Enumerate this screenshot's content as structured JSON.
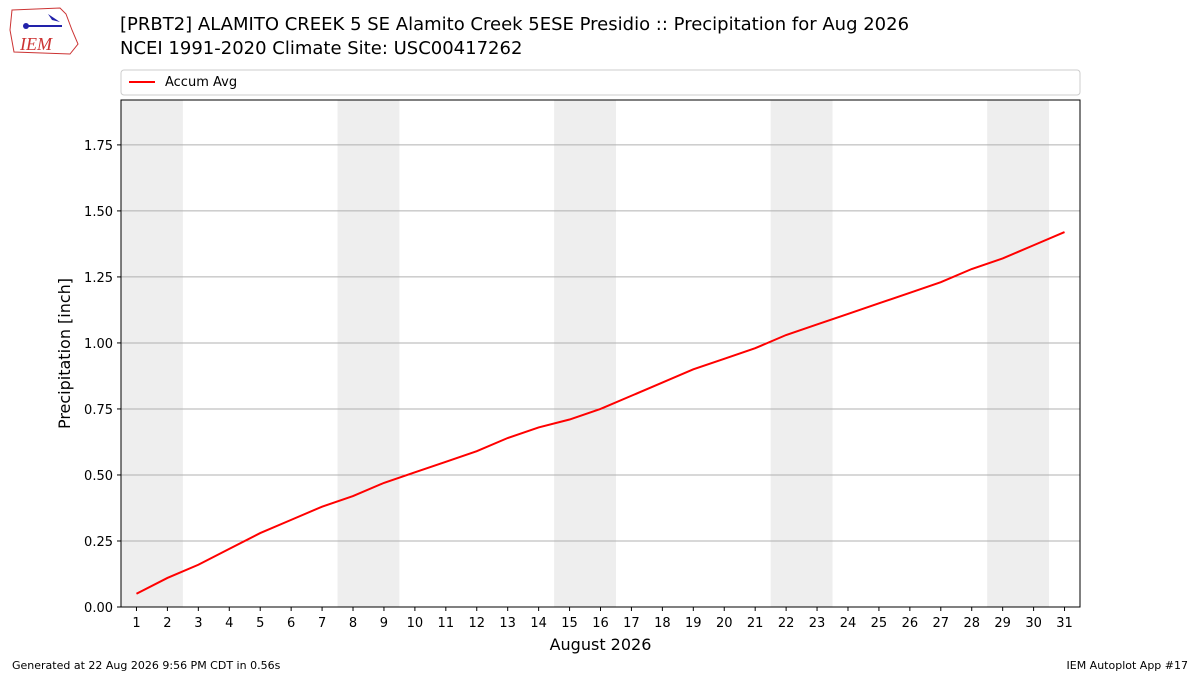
{
  "logo_text": "IEM",
  "footer_left": "Generated at 22 Aug 2026 9:56 PM CDT in 0.56s",
  "footer_right": "IEM Autoplot App #17",
  "chart_data": {
    "type": "line",
    "title": "[PRBT2] ALAMITO CREEK 5 SE Alamito Creek 5ESE Presidio :: Precipitation for Aug 2026",
    "subtitle": "NCEI 1991-2020 Climate Site: USC00417262",
    "xlabel": "August 2026",
    "ylabel": "Precipitation [inch]",
    "x": [
      1,
      2,
      3,
      4,
      5,
      6,
      7,
      8,
      9,
      10,
      11,
      12,
      13,
      14,
      15,
      16,
      17,
      18,
      19,
      20,
      21,
      22,
      23,
      24,
      25,
      26,
      27,
      28,
      29,
      30,
      31
    ],
    "series": [
      {
        "name": "Accum Avg",
        "color": "#ff0000",
        "values": [
          0.05,
          0.11,
          0.16,
          0.22,
          0.28,
          0.33,
          0.38,
          0.42,
          0.47,
          0.51,
          0.55,
          0.59,
          0.64,
          0.68,
          0.71,
          0.75,
          0.8,
          0.85,
          0.9,
          0.94,
          0.98,
          1.03,
          1.07,
          1.11,
          1.15,
          1.19,
          1.23,
          1.28,
          1.32,
          1.37,
          1.42
        ]
      }
    ],
    "xlim": [
      0.5,
      31.5
    ],
    "ylim": [
      0,
      1.92
    ],
    "xticks": [
      1,
      2,
      3,
      4,
      5,
      6,
      7,
      8,
      9,
      10,
      11,
      12,
      13,
      14,
      15,
      16,
      17,
      18,
      19,
      20,
      21,
      22,
      23,
      24,
      25,
      26,
      27,
      28,
      29,
      30,
      31
    ],
    "yticks": [
      {
        "value": 0,
        "label": "0.00"
      },
      {
        "value": 0.25,
        "label": "0.25"
      },
      {
        "value": 0.5,
        "label": "0.50"
      },
      {
        "value": 0.75,
        "label": "0.75"
      },
      {
        "value": 1,
        "label": "1.00"
      },
      {
        "value": 1.25,
        "label": "1.25"
      },
      {
        "value": 1.5,
        "label": "1.50"
      },
      {
        "value": 1.75,
        "label": "1.75"
      }
    ],
    "shaded_spans": [
      [
        0.5,
        2.5
      ],
      [
        7.5,
        9.5
      ],
      [
        14.5,
        16.5
      ],
      [
        21.5,
        23.5
      ],
      [
        28.5,
        30.5
      ]
    ],
    "shade_color": "#eeeeee",
    "grid": "y",
    "legend": "top"
  }
}
